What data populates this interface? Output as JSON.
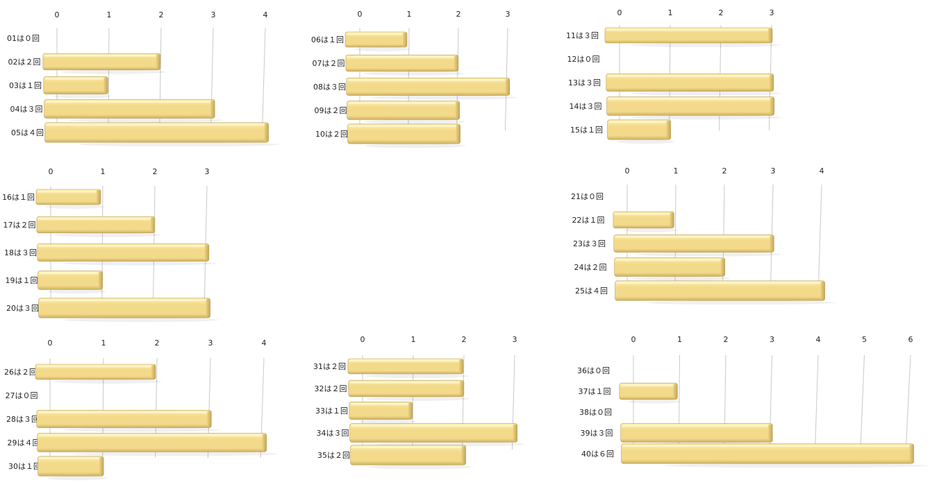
{
  "colors": {
    "bar_top": "#fbefad",
    "bar_mid": "#f3d98a",
    "bar_bottom": "#cdb061",
    "bar_edge": "#b79d55",
    "grid": "#c8c8c8",
    "text": "#222222"
  },
  "chart_data": [
    {
      "type": "bar",
      "orientation": "horizontal",
      "panel": "top-left",
      "categories": [
        "01は０回",
        "02は２回",
        "03は１回",
        "04は３回",
        "05は４回"
      ],
      "values": [
        0,
        2,
        1,
        3,
        4
      ],
      "xlim": [
        0,
        4
      ],
      "ticks": [
        "0",
        "1",
        "2",
        "3",
        "4"
      ],
      "grid": true
    },
    {
      "type": "bar",
      "orientation": "horizontal",
      "panel": "top-center",
      "categories": [
        "06は１回",
        "07は２回",
        "08は３回",
        "09は２回",
        "10は２回"
      ],
      "values": [
        1,
        2,
        3,
        2,
        2
      ],
      "xlim": [
        0,
        3
      ],
      "ticks": [
        "0",
        "1",
        "2",
        "3"
      ],
      "grid": true
    },
    {
      "type": "bar",
      "orientation": "horizontal",
      "panel": "top-right",
      "categories": [
        "11は３回",
        "12は０回",
        "13は３回",
        "14は３回",
        "15は１回"
      ],
      "values": [
        3,
        0,
        3,
        3,
        1
      ],
      "xlim": [
        0,
        3
      ],
      "ticks": [
        "0",
        "1",
        "2",
        "3"
      ],
      "grid": true
    },
    {
      "type": "bar",
      "orientation": "horizontal",
      "panel": "middle-left",
      "categories": [
        "16は１回",
        "17は２回",
        "18は３回",
        "19は１回",
        "20は３回"
      ],
      "values": [
        1,
        2,
        3,
        1,
        3
      ],
      "xlim": [
        0,
        3
      ],
      "ticks": [
        "0",
        "1",
        "2",
        "3"
      ],
      "grid": true
    },
    {
      "type": "bar",
      "orientation": "horizontal",
      "panel": "middle-right",
      "categories": [
        "21は０回",
        "22は１回",
        "23は３回",
        "24は２回",
        "25は４回"
      ],
      "values": [
        0,
        1,
        3,
        2,
        4
      ],
      "xlim": [
        0,
        4
      ],
      "ticks": [
        "0",
        "1",
        "2",
        "3",
        "4"
      ],
      "grid": true
    },
    {
      "type": "bar",
      "orientation": "horizontal",
      "panel": "bottom-left",
      "categories": [
        "26は２回",
        "27は０回",
        "28は３回",
        "29は４回",
        "30は１回"
      ],
      "values": [
        2,
        0,
        3,
        4,
        1
      ],
      "xlim": [
        0,
        4
      ],
      "ticks": [
        "0",
        "1",
        "2",
        "3",
        "4"
      ],
      "grid": true
    },
    {
      "type": "bar",
      "orientation": "horizontal",
      "panel": "bottom-center",
      "categories": [
        "31は２回",
        "32は２回",
        "33は１回",
        "34は３回",
        "35は２回"
      ],
      "values": [
        2,
        2,
        1,
        3,
        2
      ],
      "xlim": [
        0,
        3
      ],
      "ticks": [
        "0",
        "1",
        "2",
        "3"
      ],
      "grid": true
    },
    {
      "type": "bar",
      "orientation": "horizontal",
      "panel": "bottom-right",
      "categories": [
        "36は０回",
        "37は１回",
        "38は０回",
        "39は３回",
        "40は６回"
      ],
      "values": [
        0,
        1,
        0,
        3,
        6
      ],
      "xlim": [
        0,
        6
      ],
      "ticks": [
        "0",
        "1",
        "2",
        "3",
        "4",
        "5",
        "6"
      ],
      "grid": true
    }
  ]
}
